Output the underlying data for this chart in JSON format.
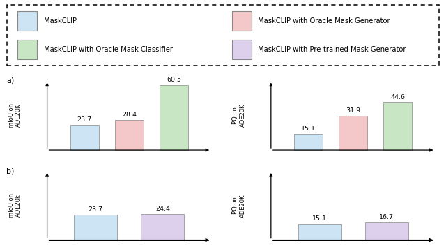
{
  "legend_items": [
    {
      "label": "MaskCLIP",
      "color": "#cce4f4",
      "edge_color": "#888888"
    },
    {
      "label": "MaskCLIP with Oracle Mask Classifier",
      "color": "#c8e6c4",
      "edge_color": "#888888"
    },
    {
      "label": "MaskCLIP with Oracle Mask Generator",
      "color": "#f4c8c8",
      "edge_color": "#888888"
    },
    {
      "label": "MaskCLIP with Pre-trained Mask Generator",
      "color": "#ddd0ec",
      "edge_color": "#888888"
    }
  ],
  "row_a": {
    "left": {
      "bars": [
        {
          "value": 23.7,
          "color": "#cce4f4",
          "edge": "#888888"
        },
        {
          "value": 28.4,
          "color": "#f4c8c8",
          "edge": "#888888"
        },
        {
          "value": 60.5,
          "color": "#c8e6c4",
          "edge": "#888888"
        }
      ],
      "ylabel": "mIoU on\nADE20K",
      "global_max": 65
    },
    "right": {
      "bars": [
        {
          "value": 15.1,
          "color": "#cce4f4",
          "edge": "#888888"
        },
        {
          "value": 31.9,
          "color": "#f4c8c8",
          "edge": "#888888"
        },
        {
          "value": 44.6,
          "color": "#c8e6c4",
          "edge": "#888888"
        }
      ],
      "ylabel": "PQ on\nADE20K",
      "global_max": 65
    }
  },
  "row_b": {
    "left": {
      "bars": [
        {
          "value": 23.7,
          "color": "#cce4f4",
          "edge": "#888888"
        },
        {
          "value": 24.4,
          "color": "#ddd0ec",
          "edge": "#888888"
        }
      ],
      "ylabel": "mIoU on\nADE20k",
      "global_max": 65
    },
    "right": {
      "bars": [
        {
          "value": 15.1,
          "color": "#cce4f4",
          "edge": "#888888"
        },
        {
          "value": 16.7,
          "color": "#ddd0ec",
          "edge": "#888888"
        }
      ],
      "ylabel": "PQ on\nADE20K",
      "global_max": 65
    }
  },
  "background_color": "#ffffff",
  "row_label_a": "a)",
  "row_label_b": "b)"
}
